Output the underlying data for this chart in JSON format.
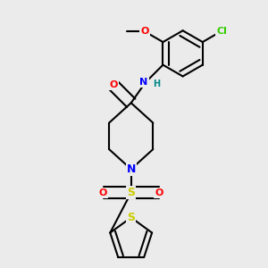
{
  "bg_color": "#ebebeb",
  "bond_color": "#000000",
  "bond_width": 1.5,
  "atom_colors": {
    "O": "#ff0000",
    "N": "#0000ff",
    "S": "#cccc00",
    "Cl": "#33cc00",
    "H": "#008888",
    "C": "#000000"
  },
  "font_size": 8,
  "figsize": [
    3.0,
    3.0
  ],
  "dpi": 100
}
